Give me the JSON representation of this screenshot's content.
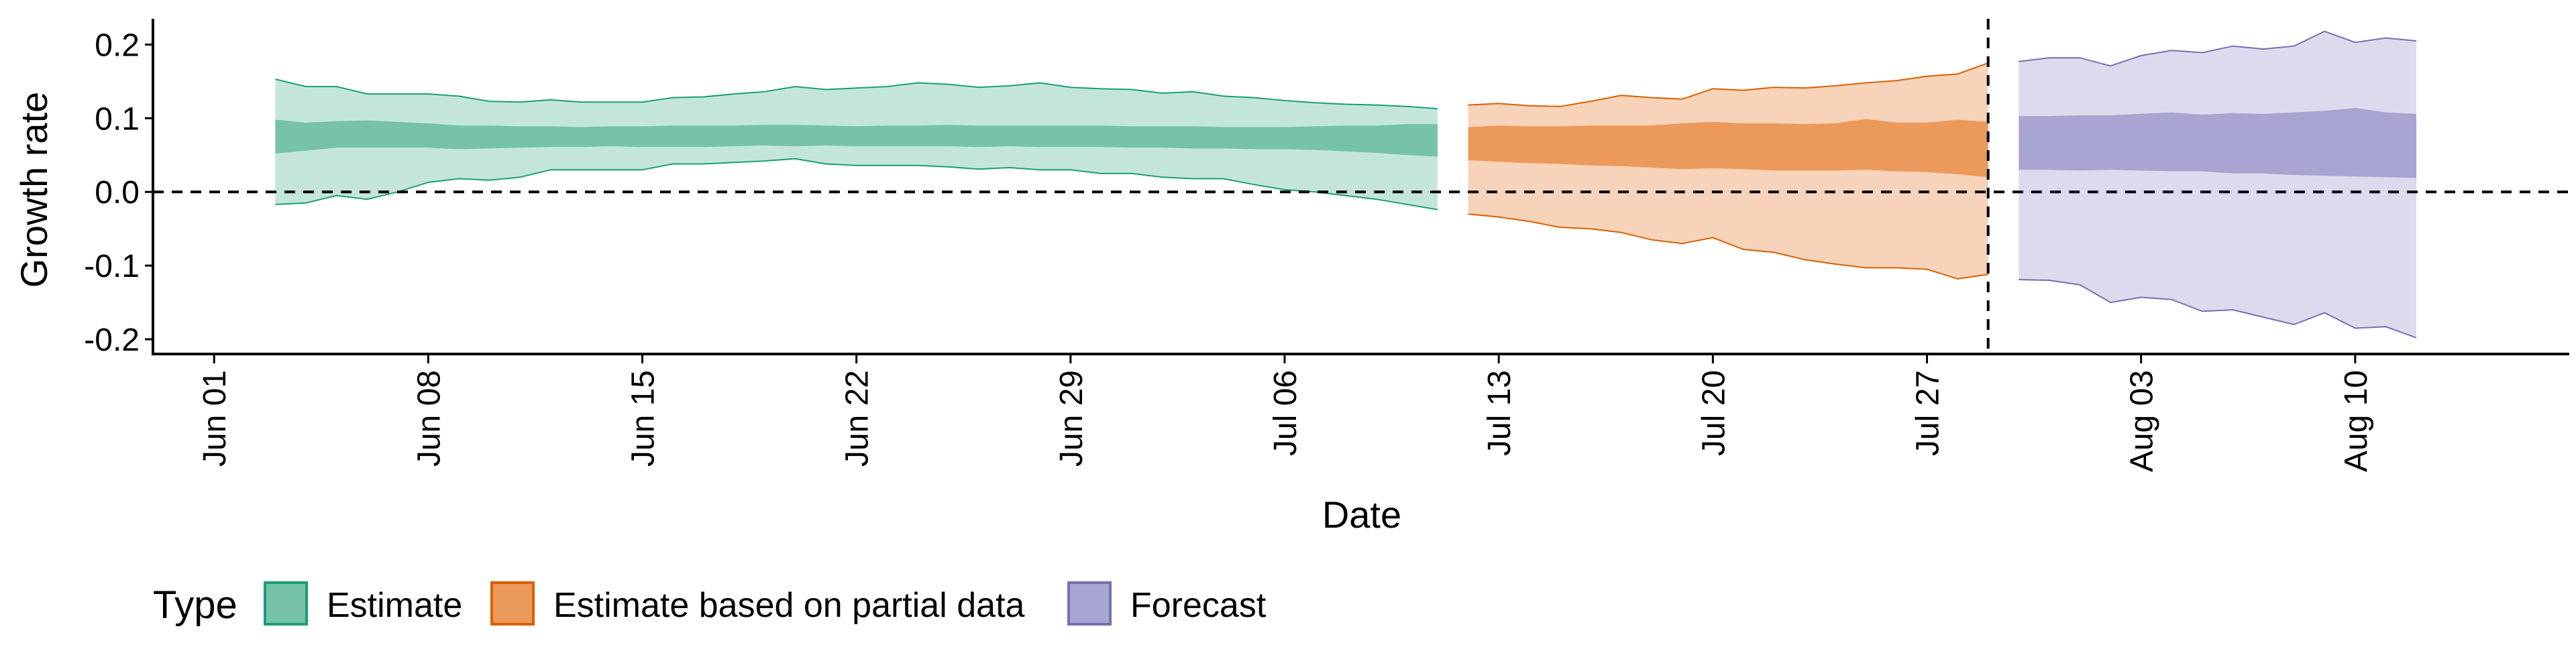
{
  "chart_data": {
    "type": "area",
    "title": "",
    "xlabel": "Date",
    "ylabel": "Growth rate",
    "ylim": [
      -0.22,
      0.235
    ],
    "xlim": [
      "2020-05-30",
      "2020-08-17"
    ],
    "x_ticks": [
      "Jun 01",
      "Jun 08",
      "Jun 15",
      "Jun 22",
      "Jun 29",
      "Jul 06",
      "Jul 13",
      "Jul 20",
      "Jul 27",
      "Aug 03",
      "Aug 10"
    ],
    "x_tick_dates": [
      "2020-06-01",
      "2020-06-08",
      "2020-06-15",
      "2020-06-22",
      "2020-06-29",
      "2020-07-06",
      "2020-07-13",
      "2020-07-20",
      "2020-07-27",
      "2020-08-03",
      "2020-08-10"
    ],
    "y_ticks": [
      0.2,
      0.1,
      0.0,
      -0.1,
      -0.2
    ],
    "y_tick_labels": [
      "0.2",
      "0.1",
      "0.0",
      "-0.1",
      "-0.2"
    ],
    "grid": false,
    "reference_lines": {
      "horizontal": 0.0,
      "vertical_date": "2020-07-29",
      "style": "dashed"
    },
    "legend": {
      "title": "Type",
      "placement": "bottom-left",
      "entries": [
        {
          "label": "Estimate",
          "fill": "#76c3a9",
          "stroke": "#1b9e77"
        },
        {
          "label": "Estimate based on partial data",
          "fill": "#eb9a5b",
          "stroke": "#d95f02"
        },
        {
          "label": "Forecast",
          "fill": "#a9a5d2",
          "stroke": "#7570b3"
        }
      ]
    },
    "series": [
      {
        "name": "Estimate",
        "outer_fill": "#c4e6da",
        "inner_fill": "#76c3a9",
        "stroke": "#1b9e77",
        "dates": [
          "2020-06-03",
          "2020-06-04",
          "2020-06-05",
          "2020-06-06",
          "2020-06-07",
          "2020-06-08",
          "2020-06-09",
          "2020-06-10",
          "2020-06-11",
          "2020-06-12",
          "2020-06-13",
          "2020-06-14",
          "2020-06-15",
          "2020-06-16",
          "2020-06-17",
          "2020-06-18",
          "2020-06-19",
          "2020-06-20",
          "2020-06-21",
          "2020-06-22",
          "2020-06-23",
          "2020-06-24",
          "2020-06-25",
          "2020-06-26",
          "2020-06-27",
          "2020-06-28",
          "2020-06-29",
          "2020-06-30",
          "2020-07-01",
          "2020-07-02",
          "2020-07-03",
          "2020-07-04",
          "2020-07-05",
          "2020-07-06",
          "2020-07-07",
          "2020-07-08",
          "2020-07-09",
          "2020-07-10",
          "2020-07-11"
        ],
        "outer_upper": [
          0.153,
          0.143,
          0.143,
          0.133,
          0.133,
          0.133,
          0.13,
          0.123,
          0.122,
          0.125,
          0.122,
          0.122,
          0.122,
          0.128,
          0.129,
          0.133,
          0.136,
          0.143,
          0.139,
          0.141,
          0.143,
          0.148,
          0.146,
          0.142,
          0.144,
          0.148,
          0.142,
          0.14,
          0.139,
          0.134,
          0.136,
          0.13,
          0.128,
          0.124,
          0.121,
          0.119,
          0.118,
          0.116,
          0.113
        ],
        "outer_lower": [
          -0.017,
          -0.015,
          -0.005,
          -0.01,
          0.0,
          0.013,
          0.018,
          0.016,
          0.02,
          0.03,
          0.03,
          0.03,
          0.03,
          0.038,
          0.038,
          0.04,
          0.042,
          0.045,
          0.038,
          0.036,
          0.036,
          0.036,
          0.034,
          0.031,
          0.033,
          0.03,
          0.03,
          0.025,
          0.025,
          0.02,
          0.018,
          0.018,
          0.01,
          0.003,
          0.0,
          -0.005,
          -0.01,
          -0.017,
          -0.024
        ],
        "inner_upper": [
          0.098,
          0.094,
          0.096,
          0.097,
          0.095,
          0.093,
          0.09,
          0.09,
          0.089,
          0.089,
          0.088,
          0.089,
          0.089,
          0.09,
          0.09,
          0.09,
          0.091,
          0.091,
          0.09,
          0.089,
          0.09,
          0.09,
          0.091,
          0.09,
          0.09,
          0.09,
          0.09,
          0.09,
          0.089,
          0.089,
          0.089,
          0.088,
          0.088,
          0.088,
          0.089,
          0.09,
          0.09,
          0.092,
          0.092
        ],
        "inner_lower": [
          0.052,
          0.056,
          0.06,
          0.06,
          0.06,
          0.06,
          0.058,
          0.059,
          0.06,
          0.061,
          0.061,
          0.062,
          0.061,
          0.061,
          0.061,
          0.062,
          0.063,
          0.062,
          0.063,
          0.062,
          0.062,
          0.062,
          0.062,
          0.061,
          0.062,
          0.061,
          0.061,
          0.061,
          0.06,
          0.06,
          0.059,
          0.059,
          0.058,
          0.058,
          0.057,
          0.055,
          0.053,
          0.05,
          0.048
        ]
      },
      {
        "name": "Estimate based on partial data",
        "outer_fill": "#f7d3b9",
        "inner_fill": "#eb9a5b",
        "stroke": "#d95f02",
        "dates": [
          "2020-07-12",
          "2020-07-13",
          "2020-07-14",
          "2020-07-15",
          "2020-07-16",
          "2020-07-17",
          "2020-07-18",
          "2020-07-19",
          "2020-07-20",
          "2020-07-21",
          "2020-07-22",
          "2020-07-23",
          "2020-07-24",
          "2020-07-25",
          "2020-07-26",
          "2020-07-27",
          "2020-07-28",
          "2020-07-29"
        ],
        "outer_upper": [
          0.118,
          0.12,
          0.117,
          0.116,
          0.123,
          0.131,
          0.128,
          0.126,
          0.14,
          0.138,
          0.142,
          0.141,
          0.144,
          0.148,
          0.151,
          0.157,
          0.16,
          0.175
        ],
        "outer_lower": [
          -0.03,
          -0.034,
          -0.04,
          -0.048,
          -0.05,
          -0.055,
          -0.065,
          -0.07,
          -0.062,
          -0.078,
          -0.082,
          -0.092,
          -0.098,
          -0.103,
          -0.103,
          -0.105,
          -0.118,
          -0.112
        ],
        "inner_upper": [
          0.088,
          0.09,
          0.089,
          0.089,
          0.09,
          0.09,
          0.09,
          0.093,
          0.095,
          0.093,
          0.093,
          0.092,
          0.093,
          0.099,
          0.094,
          0.094,
          0.098,
          0.095
        ],
        "inner_lower": [
          0.043,
          0.041,
          0.039,
          0.038,
          0.036,
          0.035,
          0.033,
          0.031,
          0.032,
          0.031,
          0.029,
          0.029,
          0.029,
          0.03,
          0.028,
          0.027,
          0.024,
          0.02
        ]
      },
      {
        "name": "Forecast",
        "outer_fill": "#dcdaec",
        "inner_fill": "#a9a5d2",
        "stroke": "#7570b3",
        "dates": [
          "2020-07-30",
          "2020-07-31",
          "2020-08-01",
          "2020-08-02",
          "2020-08-03",
          "2020-08-04",
          "2020-08-05",
          "2020-08-06",
          "2020-08-07",
          "2020-08-08",
          "2020-08-09",
          "2020-08-10",
          "2020-08-11",
          "2020-08-12"
        ],
        "outer_upper": [
          0.177,
          0.182,
          0.182,
          0.171,
          0.185,
          0.192,
          0.189,
          0.198,
          0.194,
          0.198,
          0.218,
          0.203,
          0.209,
          0.205
        ],
        "outer_lower": [
          -0.119,
          -0.12,
          -0.126,
          -0.15,
          -0.143,
          -0.146,
          -0.162,
          -0.16,
          -0.17,
          -0.18,
          -0.164,
          -0.185,
          -0.183,
          -0.198
        ],
        "inner_upper": [
          0.103,
          0.103,
          0.104,
          0.104,
          0.106,
          0.108,
          0.105,
          0.107,
          0.106,
          0.108,
          0.11,
          0.114,
          0.108,
          0.106
        ],
        "inner_lower": [
          0.03,
          0.03,
          0.029,
          0.03,
          0.029,
          0.028,
          0.028,
          0.025,
          0.025,
          0.023,
          0.022,
          0.021,
          0.02,
          0.019
        ]
      }
    ]
  }
}
